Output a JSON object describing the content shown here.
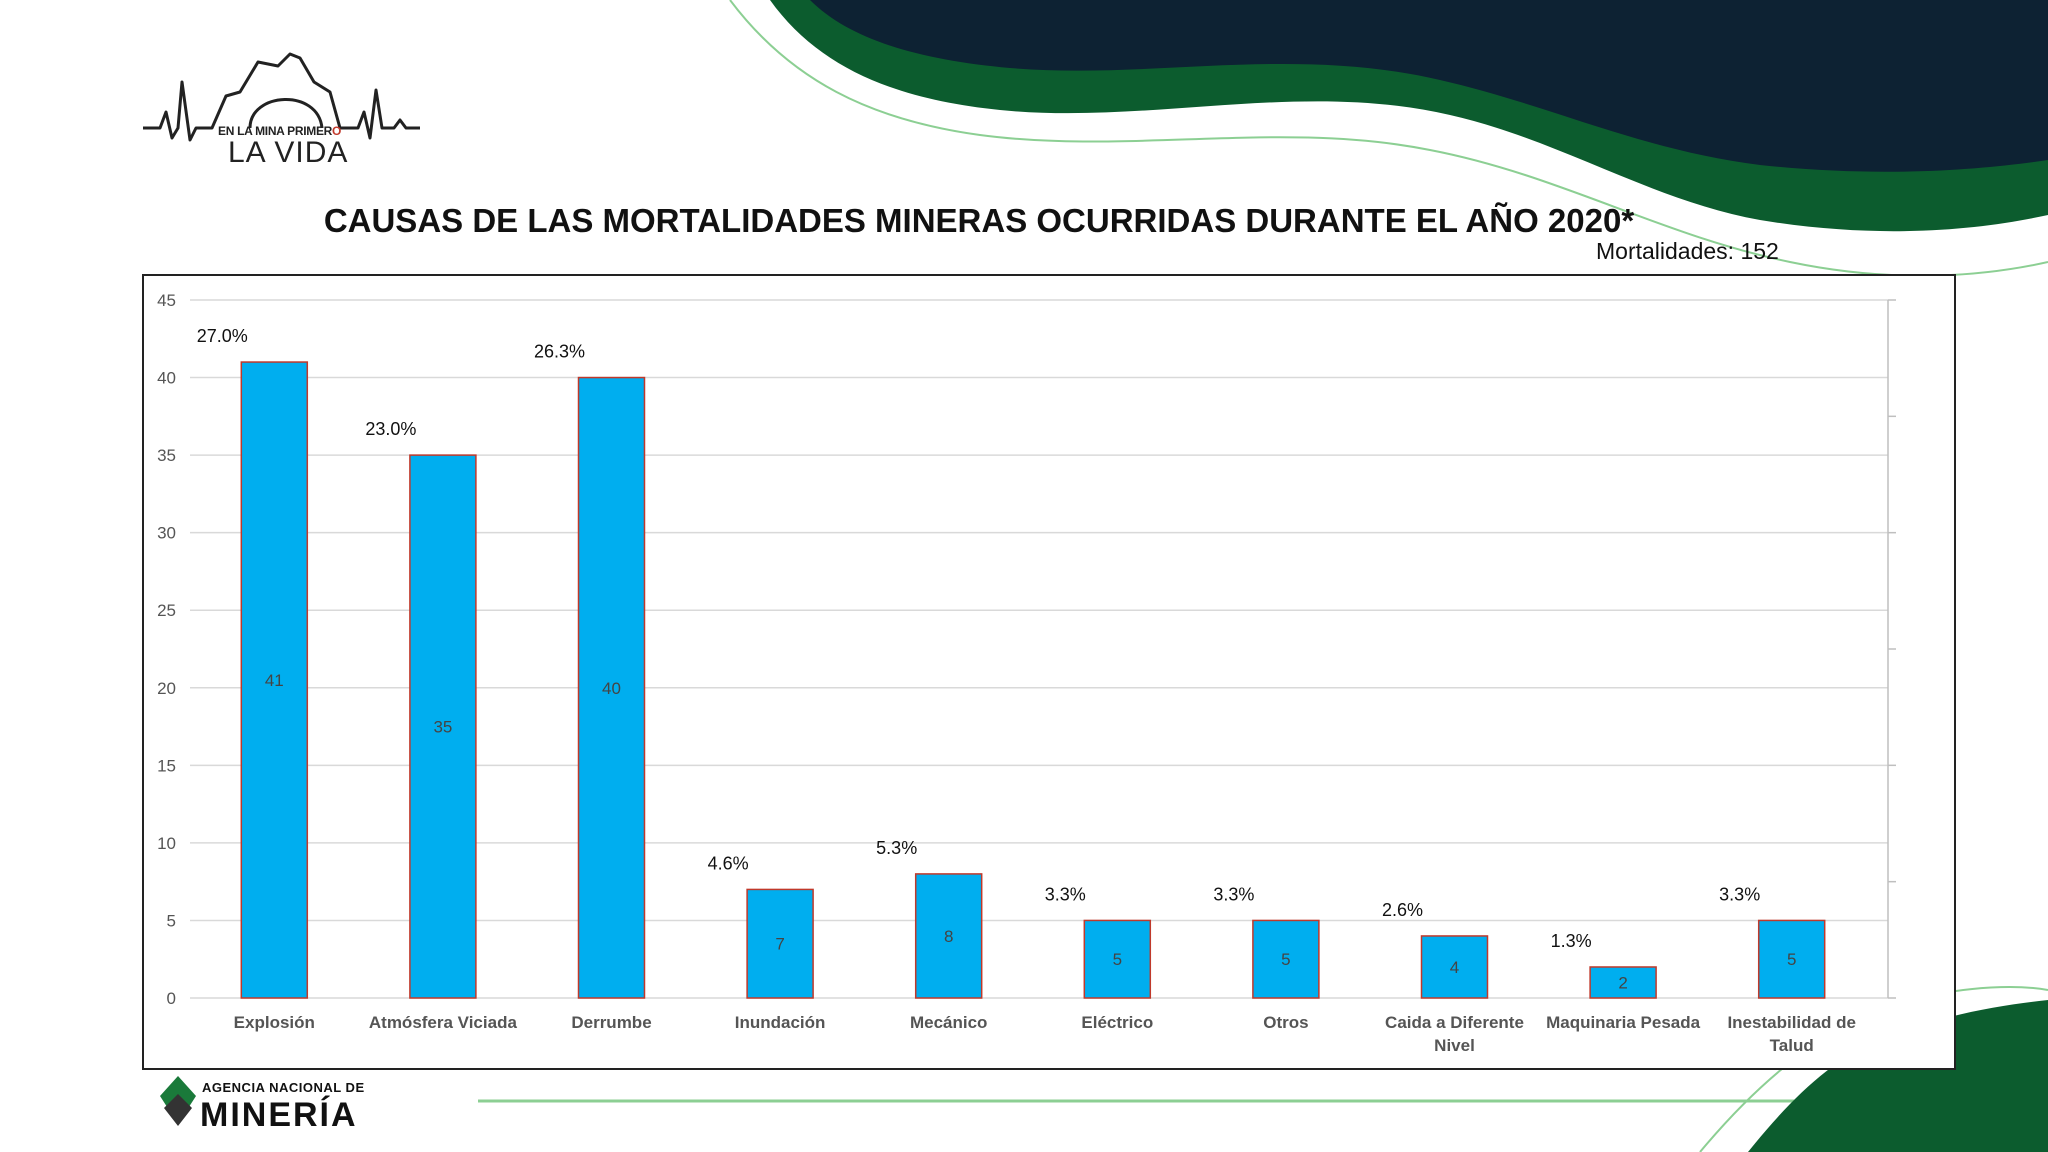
{
  "brand": {
    "top_text_part1": "EN LA MINA PRIMER",
    "top_text_part2": "O",
    "main_text": "LA VIDA",
    "agency_small": "AGENCIA NACIONAL DE",
    "agency_big": "MINERÍA"
  },
  "colors": {
    "bar_fill": "#00aeef",
    "bar_stroke": "#c0392b",
    "dark_navy": "#0d2233",
    "dark_green": "#0c5c2e",
    "light_green": "#8ccf93"
  },
  "chart_data": {
    "type": "bar",
    "title": "CAUSAS DE LAS MORTALIDADES MINERAS OCURRIDAS DURANTE EL AÑO 2020*",
    "subtitle": "Mortalidades: 152",
    "categories": [
      "Explosión",
      "Atmósfera Viciada",
      "Derrumbe",
      "Inundación",
      "Mecánico",
      "Eléctrico",
      "Otros",
      "Caida a Diferente Nivel",
      "Maquinaria Pesada",
      "Inestabilidad de Talud"
    ],
    "values": [
      41,
      35,
      40,
      7,
      8,
      5,
      5,
      4,
      2,
      5
    ],
    "percent_labels": [
      "27.0%",
      "23.0%",
      "26.3%",
      "4.6%",
      "5.3%",
      "3.3%",
      "3.3%",
      "2.6%",
      "1.3%",
      "3.3%"
    ],
    "ylim": [
      0,
      45
    ],
    "yticks": [
      0,
      5,
      10,
      15,
      20,
      25,
      30,
      35,
      40,
      45
    ],
    "grid": true
  }
}
